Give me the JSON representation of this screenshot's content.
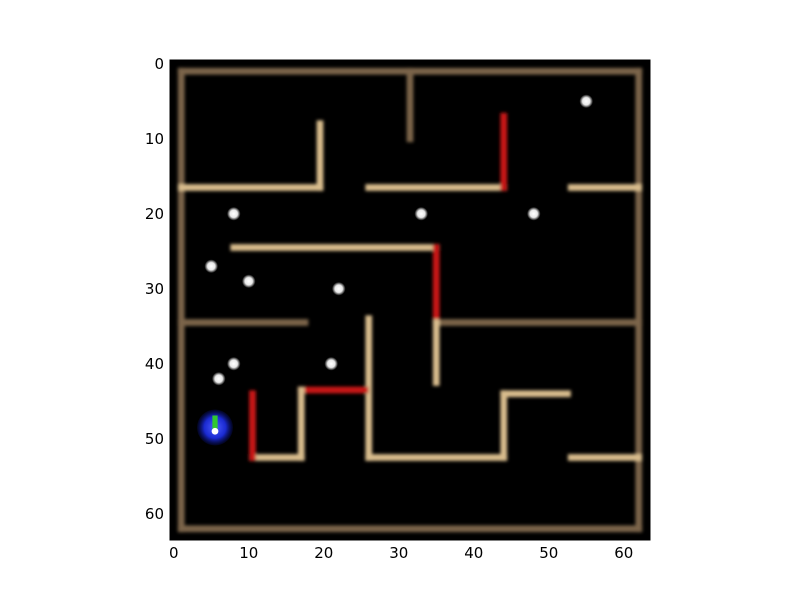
{
  "axes": {
    "x_ticks": [
      "0",
      "10",
      "20",
      "30",
      "40",
      "50",
      "60"
    ],
    "y_ticks": [
      "0",
      "10",
      "20",
      "30",
      "40",
      "50",
      "60"
    ],
    "xlim": [
      -0.5,
      63.5
    ],
    "ylim": [
      63.5,
      -0.5
    ]
  },
  "colors": {
    "background": "#000000",
    "wall_light": "#d8bc8c",
    "wall_dim": "#7a6448",
    "wall_red": "#c81818",
    "orb": "#ffffff",
    "agent_body": "#1a2ad0",
    "agent_dir": "#30c830"
  },
  "maze": {
    "walls": [
      {
        "kind": "dim",
        "x1": 1,
        "y1": 1,
        "x2": 62,
        "y2": 1
      },
      {
        "kind": "dim",
        "x1": 1,
        "y1": 62,
        "x2": 62,
        "y2": 62
      },
      {
        "kind": "dim",
        "x1": 1,
        "y1": 1,
        "x2": 1,
        "y2": 62
      },
      {
        "kind": "dim",
        "x1": 62,
        "y1": 1,
        "x2": 62,
        "y2": 62
      },
      {
        "kind": "dim",
        "x1": 31.5,
        "y1": 1,
        "x2": 31.5,
        "y2": 10
      },
      {
        "kind": "light",
        "x1": 1,
        "y1": 16.5,
        "x2": 19.5,
        "y2": 16.5
      },
      {
        "kind": "light",
        "x1": 19.5,
        "y1": 8,
        "x2": 19.5,
        "y2": 16.5
      },
      {
        "kind": "light",
        "x1": 26,
        "y1": 16.5,
        "x2": 44,
        "y2": 16.5
      },
      {
        "kind": "red",
        "x1": 44,
        "y1": 7,
        "x2": 44,
        "y2": 16.5
      },
      {
        "kind": "light",
        "x1": 53,
        "y1": 16.5,
        "x2": 62,
        "y2": 16.5
      },
      {
        "kind": "light",
        "x1": 8,
        "y1": 24.5,
        "x2": 35,
        "y2": 24.5
      },
      {
        "kind": "red",
        "x1": 35,
        "y1": 24.5,
        "x2": 35,
        "y2": 34
      },
      {
        "kind": "dim",
        "x1": 1,
        "y1": 34.5,
        "x2": 17.5,
        "y2": 34.5
      },
      {
        "kind": "dim",
        "x1": 35,
        "y1": 34.5,
        "x2": 62,
        "y2": 34.5
      },
      {
        "kind": "light",
        "x1": 35,
        "y1": 34.5,
        "x2": 35,
        "y2": 42.5
      },
      {
        "kind": "light",
        "x1": 26,
        "y1": 34,
        "x2": 26,
        "y2": 52.5
      },
      {
        "kind": "light",
        "x1": 26,
        "y1": 52.5,
        "x2": 44,
        "y2": 52.5
      },
      {
        "kind": "light",
        "x1": 44,
        "y1": 44,
        "x2": 44,
        "y2": 52.5
      },
      {
        "kind": "light",
        "x1": 44,
        "y1": 44,
        "x2": 52.5,
        "y2": 44
      },
      {
        "kind": "light",
        "x1": 53,
        "y1": 52.5,
        "x2": 62,
        "y2": 52.5
      },
      {
        "kind": "red",
        "x1": 17,
        "y1": 43.5,
        "x2": 25.5,
        "y2": 43.5
      },
      {
        "kind": "light",
        "x1": 17,
        "y1": 43.5,
        "x2": 17,
        "y2": 52.5
      },
      {
        "kind": "light",
        "x1": 10.5,
        "y1": 52.5,
        "x2": 17,
        "y2": 52.5
      },
      {
        "kind": "red",
        "x1": 10.5,
        "y1": 44,
        "x2": 10.5,
        "y2": 52.5
      }
    ],
    "orbs": [
      {
        "x": 55,
        "y": 5
      },
      {
        "x": 8,
        "y": 20
      },
      {
        "x": 33,
        "y": 20
      },
      {
        "x": 48,
        "y": 20
      },
      {
        "x": 5,
        "y": 27
      },
      {
        "x": 10,
        "y": 29
      },
      {
        "x": 22,
        "y": 30
      },
      {
        "x": 8,
        "y": 40
      },
      {
        "x": 21,
        "y": 40
      },
      {
        "x": 6,
        "y": 42
      }
    ],
    "agent": {
      "x": 5.5,
      "y": 48.5
    }
  }
}
